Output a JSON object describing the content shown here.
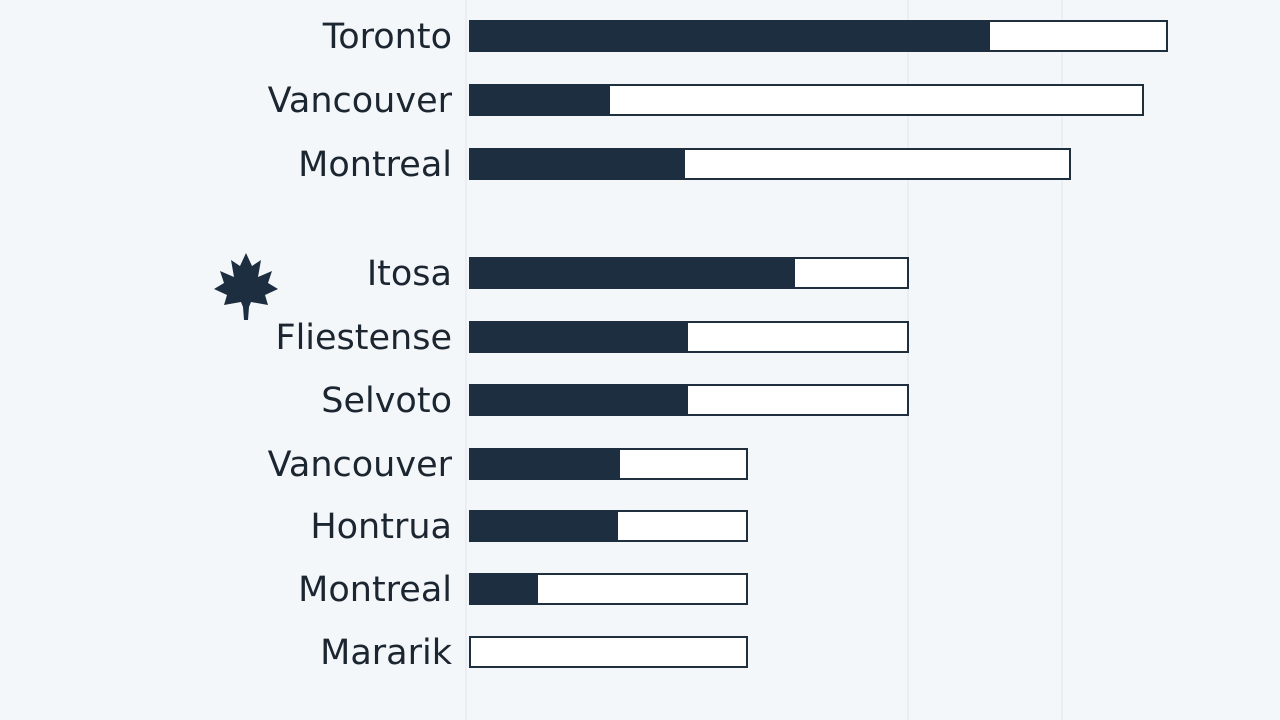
{
  "colors": {
    "background": "#f4f7fa",
    "bar_fill": "#1c2e40",
    "bar_outline": "#1f2f3e",
    "label": "#1c2630",
    "icon": "#1c2e40"
  },
  "icon": "maple-leaf-icon",
  "chart_data": {
    "type": "bar",
    "orientation": "horizontal",
    "title": "",
    "xlabel": "",
    "ylabel": "",
    "grid": true,
    "legend": "none",
    "categories": [
      "Toronto",
      "Vancouver",
      "Montreal",
      "Itosa",
      "Fliestense",
      "Selvoto",
      "Vancouver",
      "Hontrua",
      "Montreal",
      "Mararik"
    ],
    "values": [
      520,
      140,
      215,
      325,
      218,
      218,
      150,
      148,
      68,
      0
    ],
    "totals": [
      697,
      673,
      600,
      438,
      438,
      438,
      277,
      277,
      277,
      277
    ]
  }
}
